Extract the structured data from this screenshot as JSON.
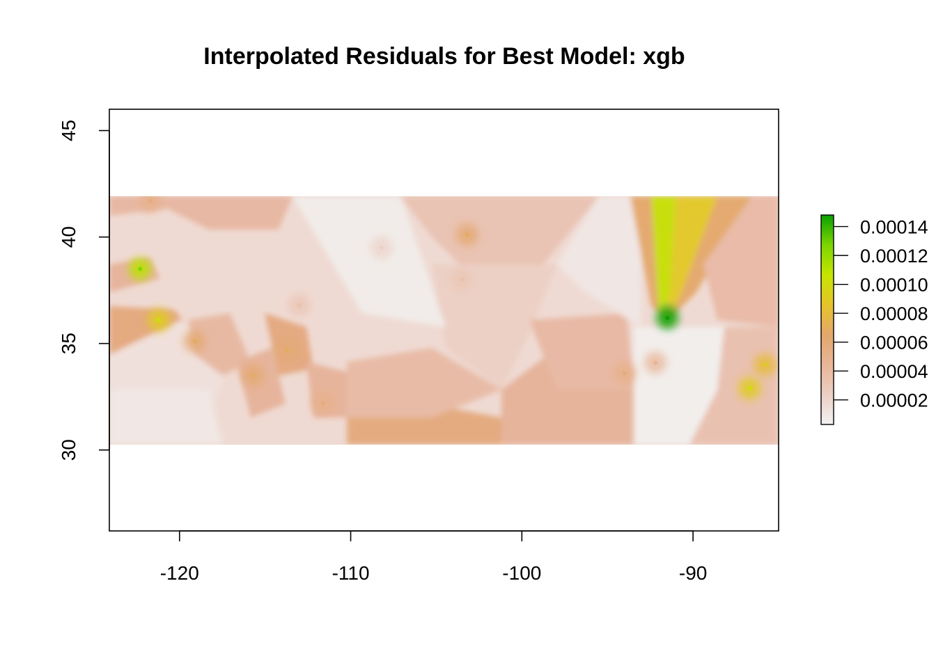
{
  "chart_data": {
    "type": "heatmap",
    "title": "Interpolated Residuals for Best Model: xgb",
    "xlabel": "",
    "ylabel": "",
    "xlim": [
      -124.1,
      -85.0
    ],
    "ylim": [
      26.2,
      46.0
    ],
    "x_ticks": [
      -120,
      -110,
      -100,
      -90
    ],
    "x_tick_labels": [
      "-120",
      "-110",
      "-100",
      "-90"
    ],
    "y_ticks": [
      30,
      35,
      40,
      45
    ],
    "y_tick_labels": [
      "30",
      "35",
      "40",
      "45"
    ],
    "raster_extent": {
      "xmin": -124.1,
      "xmax": -85.0,
      "ymin": 30.2,
      "ymax": 41.95
    },
    "colorbar": {
      "min": 3e-06,
      "max": 0.000148,
      "ticks": [
        2e-05,
        4e-05,
        6e-05,
        8e-05,
        0.0001,
        0.00012,
        0.00014
      ],
      "tick_labels": [
        "0.00002",
        "0.00004",
        "0.00006",
        "0.00008",
        "0.00010",
        "0.00012",
        "0.00014"
      ],
      "colors": [
        "#f2f2f2",
        "#eccfc4",
        "#e8b597",
        "#e3a76b",
        "#e6c42a",
        "#c6e500",
        "#7bd500",
        "#0aa000"
      ]
    },
    "hotspots": [
      {
        "x": -91.5,
        "y": 36.2,
        "value": 0.000148
      },
      {
        "x": -122.3,
        "y": 38.5,
        "value": 0.00011
      },
      {
        "x": -121.2,
        "y": 36.1,
        "value": 9e-05
      },
      {
        "x": -103.2,
        "y": 40.1,
        "value": 6e-05
      },
      {
        "x": -86.7,
        "y": 32.9,
        "value": 9e-05
      },
      {
        "x": -85.8,
        "y": 34.0,
        "value": 8e-05
      },
      {
        "x": -113.7,
        "y": 34.7,
        "value": 6e-05
      },
      {
        "x": -115.7,
        "y": 33.5,
        "value": 6e-05
      },
      {
        "x": -119.1,
        "y": 35.1,
        "value": 6e-05
      },
      {
        "x": -111.6,
        "y": 32.2,
        "value": 5e-05
      },
      {
        "x": -94.0,
        "y": 33.6,
        "value": 5e-05
      },
      {
        "x": -92.2,
        "y": 34.1,
        "value": 4e-05
      },
      {
        "x": -121.7,
        "y": 41.7,
        "value": 5e-05
      },
      {
        "x": -103.5,
        "y": 38.0,
        "value": 3e-05
      },
      {
        "x": -113.0,
        "y": 36.8,
        "value": 3e-05
      },
      {
        "x": -108.2,
        "y": 39.5,
        "value": 2e-05
      }
    ]
  }
}
